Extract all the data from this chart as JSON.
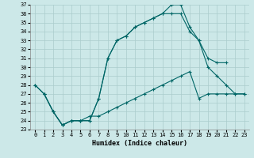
{
  "xlabel": "Humidex (Indice chaleur)",
  "bg_color": "#cce8e8",
  "line_color": "#006666",
  "grid_color": "#aacccc",
  "xlim": [
    -0.5,
    23.5
  ],
  "ylim": [
    23,
    37
  ],
  "xticks": [
    0,
    1,
    2,
    3,
    4,
    5,
    6,
    7,
    8,
    9,
    10,
    11,
    12,
    13,
    14,
    15,
    16,
    17,
    18,
    19,
    20,
    21,
    22,
    23
  ],
  "yticks": [
    23,
    24,
    25,
    26,
    27,
    28,
    29,
    30,
    31,
    32,
    33,
    34,
    35,
    36,
    37
  ],
  "c1_x": [
    0,
    1,
    2,
    3,
    4,
    5,
    6,
    7,
    8,
    9,
    10,
    11,
    12,
    13,
    14,
    15,
    16,
    17,
    18,
    19,
    20,
    21
  ],
  "c1_y": [
    28,
    27,
    25,
    23.5,
    24,
    24,
    24,
    26.5,
    31,
    33,
    33.5,
    34.5,
    35,
    35.5,
    36,
    37,
    37,
    34.5,
    33,
    31,
    30.5,
    30.5
  ],
  "c2_x": [
    0,
    1,
    2,
    3,
    4,
    5,
    6,
    7,
    8,
    9,
    10,
    11,
    12,
    13,
    14,
    15,
    16,
    17,
    18,
    19,
    20,
    21,
    22,
    23
  ],
  "c2_y": [
    28,
    27,
    25,
    23.5,
    24,
    24,
    24,
    26.5,
    31,
    33,
    33.5,
    34.5,
    35,
    35.5,
    36,
    36,
    36,
    34,
    33,
    30,
    29,
    28,
    27,
    27
  ],
  "c3_x": [
    1,
    2,
    3,
    4,
    5,
    6,
    7,
    8,
    9,
    10,
    11,
    12,
    13,
    14,
    15,
    16,
    17,
    18,
    19,
    20,
    21,
    22,
    23
  ],
  "c3_y": [
    27,
    25,
    23.5,
    24,
    24,
    24.5,
    24.5,
    25,
    25.5,
    26,
    26.5,
    27,
    27.5,
    28,
    28.5,
    29,
    29.5,
    26.5,
    27,
    27,
    27,
    27,
    27
  ]
}
